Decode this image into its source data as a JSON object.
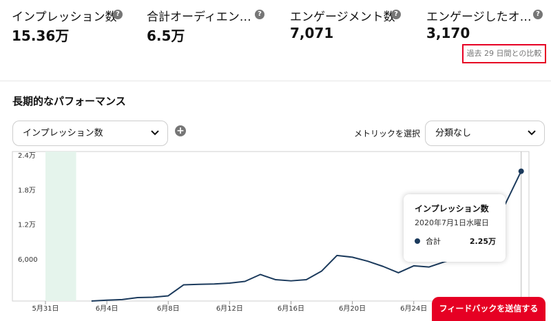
{
  "stats": [
    {
      "label": "インプレッション数",
      "value": "15.36万",
      "help": "?"
    },
    {
      "label": "合計オーディエン…",
      "value": "6.5万",
      "help": "?"
    },
    {
      "label": "エンゲージメント数",
      "value": "7,071",
      "help": "?"
    },
    {
      "label": "エンゲージしたオ…",
      "value": "3,170",
      "help": "?"
    }
  ],
  "compare_text": "過去 29 日間との比較",
  "section_title": "長期的なパフォーマンス",
  "metric_select": {
    "value": "インプレッション数"
  },
  "add_icon": "+",
  "metric_label": "メトリックを選択",
  "category_select": {
    "value": "分類なし"
  },
  "tooltip": {
    "title": "インプレッション数",
    "date": "2020年7月1日水曜日",
    "series": "合計",
    "value": "2.25万"
  },
  "feedback_label": "フィードバックを送信する",
  "chart_data": {
    "type": "line",
    "y_ticks": [
      "2.4万",
      "1.8万",
      "1.2万",
      "6,000"
    ],
    "x_ticks": [
      "5月31日",
      "6月4日",
      "6月8日",
      "6月12日",
      "6月16日",
      "6月20日",
      "6月24日"
    ],
    "highlight_range": [
      "5月31日",
      "6月2日"
    ],
    "x": [
      "6月3日",
      "6月4日",
      "6月5日",
      "6月6日",
      "6月7日",
      "6月8日",
      "6月9日",
      "6月10日",
      "6月11日",
      "6月12日",
      "6月13日",
      "6月14日",
      "6月15日",
      "6月16日",
      "6月17日",
      "6月18日",
      "6月19日",
      "6月20日",
      "6月21日",
      "6月22日",
      "6月23日",
      "6月24日",
      "6月25日",
      "6月26日",
      "6月27日",
      "6月28日",
      "6月29日",
      "6月30日",
      "7月1日"
    ],
    "values": [
      0,
      150,
      250,
      600,
      650,
      900,
      2800,
      2900,
      2950,
      3100,
      3400,
      4600,
      3700,
      3500,
      3700,
      5200,
      7900,
      7600,
      6900,
      6000,
      4900,
      6100,
      5900,
      6800,
      7500,
      9500,
      12000,
      17000,
      22500
    ],
    "ylim": [
      0,
      24000
    ],
    "color": "#1b3a5c",
    "highlight_color": "#e5f4ec"
  }
}
